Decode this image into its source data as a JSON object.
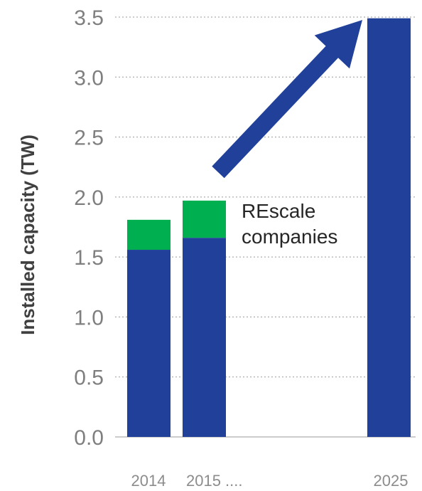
{
  "chart_data": {
    "type": "bar",
    "stacked": true,
    "categories": [
      "2014",
      "2015 ....",
      "2025"
    ],
    "series": [
      {
        "values": [
          1.56,
          1.66,
          3.49
        ],
        "color": "#21409a"
      },
      {
        "values": [
          0.25,
          0.31,
          0
        ],
        "color": "#00b050"
      }
    ],
    "ylabel": "Installed capacity (TW)",
    "ylim": [
      0,
      3.5
    ],
    "yticks": [
      "0.0",
      "0.5",
      "1.0",
      "1.5",
      "2.0",
      "2.5",
      "3.0",
      "3.5"
    ],
    "grid": true,
    "annotation": [
      "REscale",
      "companies"
    ],
    "arrow": {
      "from": [
        1.05,
        2.3
      ],
      "to": [
        2.0,
        3.5
      ],
      "color": "#21409a"
    }
  }
}
